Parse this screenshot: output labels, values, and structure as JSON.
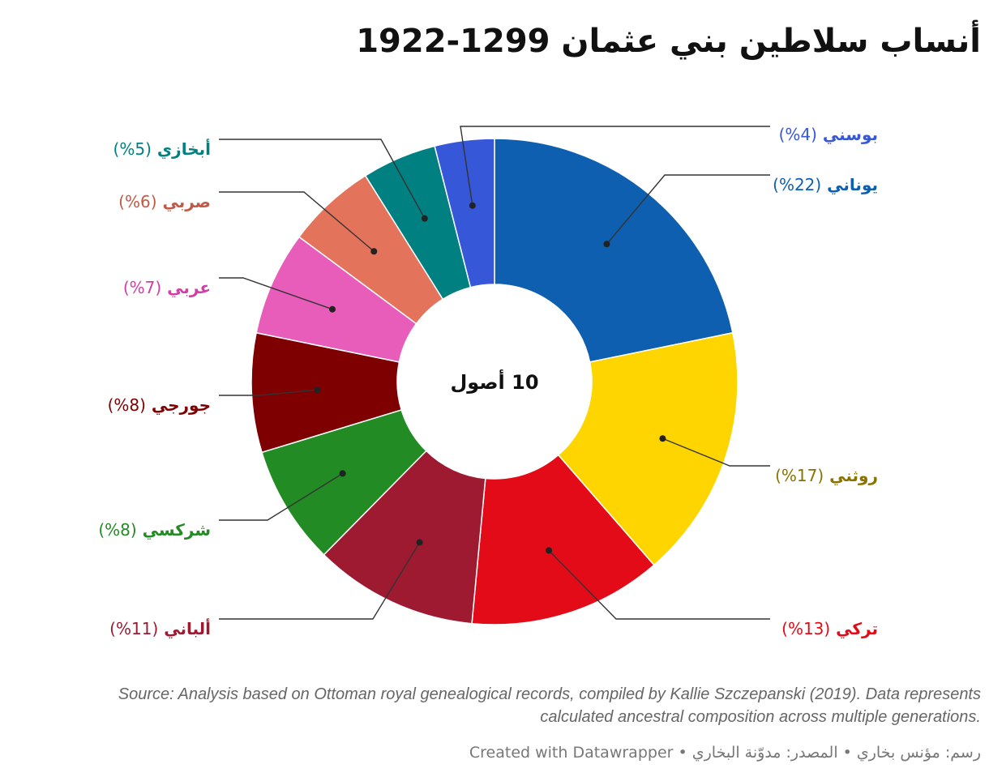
{
  "title": "أنساب سلاطين بني عثمان 1299-1922",
  "source_note": "Source: Analysis based on Ottoman royal genealogical records, compiled by Kallie Szczepanski (2019). Data represents calculated ancestral composition across multiple generations.",
  "credit": "رسم: مؤنس بخاري • المصدر: مدوّنة البخاري • Created with Datawrapper",
  "chart_data": {
    "type": "pie",
    "center_label": "10 أصول",
    "slices": [
      {
        "name": "يوناني",
        "value": 22,
        "label_pct": "(22%)",
        "color": "#0e5fb0",
        "label_color": "#0e5fb0"
      },
      {
        "name": "روثني",
        "value": 17,
        "label_pct": "(17%)",
        "color": "#ffd500",
        "label_color": "#8a7300"
      },
      {
        "name": "تركي",
        "value": 13,
        "label_pct": "(13%)",
        "color": "#e20b17",
        "label_color": "#e20b17"
      },
      {
        "name": "ألباني",
        "value": 11,
        "label_pct": "(11%)",
        "color": "#9e1a31",
        "label_color": "#9e1a31"
      },
      {
        "name": "شركسي",
        "value": 8,
        "label_pct": "(8%)",
        "color": "#238b23",
        "label_color": "#238b23"
      },
      {
        "name": "جورجي",
        "value": 8,
        "label_pct": "(8%)",
        "color": "#7f0000",
        "label_color": "#7f0000"
      },
      {
        "name": "عربي",
        "value": 7,
        "label_pct": "(7%)",
        "color": "#e85cba",
        "label_color": "#d23ea6"
      },
      {
        "name": "صربي",
        "value": 6,
        "label_pct": "(6%)",
        "color": "#e4735c",
        "label_color": "#c05a45"
      },
      {
        "name": "أبخازي",
        "value": 5,
        "label_pct": "(5%)",
        "color": "#008080",
        "label_color": "#008080"
      },
      {
        "name": "بوسني",
        "value": 4,
        "label_pct": "(4%)",
        "color": "#3657d8",
        "label_color": "#3657d8"
      }
    ]
  }
}
